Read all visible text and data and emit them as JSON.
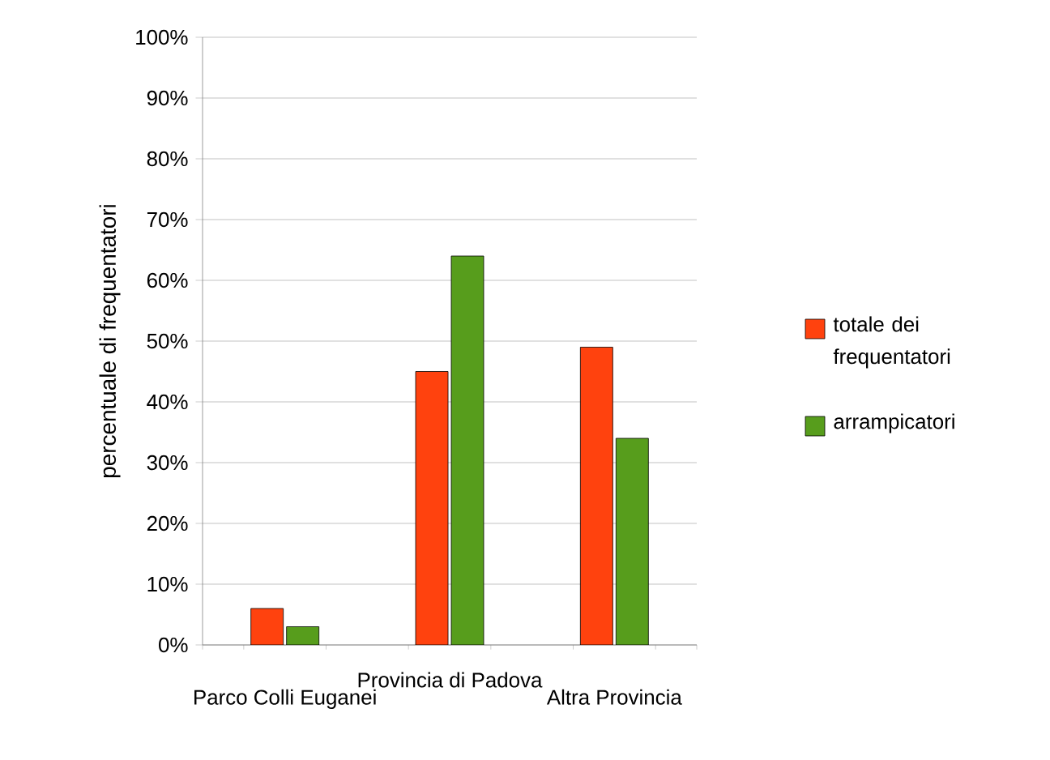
{
  "chart_data": {
    "type": "bar",
    "ylabel": "percentuale di frequentatori",
    "categories": [
      "Parco Colli Euganei",
      "Provincia di Padova",
      "Altra Provincia"
    ],
    "series": [
      {
        "name": "totale dei frequentatori",
        "color": "#ff420e",
        "values": [
          6,
          45,
          49
        ]
      },
      {
        "name": "arrampicatori",
        "color": "#579d1c",
        "values": [
          3,
          64,
          34
        ]
      }
    ],
    "ylim": [
      0,
      100
    ],
    "yticks": [
      {
        "value": 0,
        "label": "0%"
      },
      {
        "value": 10,
        "label": "10%"
      },
      {
        "value": 20,
        "label": "20%"
      },
      {
        "value": 30,
        "label": "30%"
      },
      {
        "value": 40,
        "label": "40%"
      },
      {
        "value": 50,
        "label": "50%"
      },
      {
        "value": 60,
        "label": "60%"
      },
      {
        "value": 70,
        "label": "70%"
      },
      {
        "value": 80,
        "label": "80%"
      },
      {
        "value": 90,
        "label": "90%"
      },
      {
        "value": 100,
        "label": "100%"
      }
    ],
    "grid": "y",
    "legend": "right"
  }
}
